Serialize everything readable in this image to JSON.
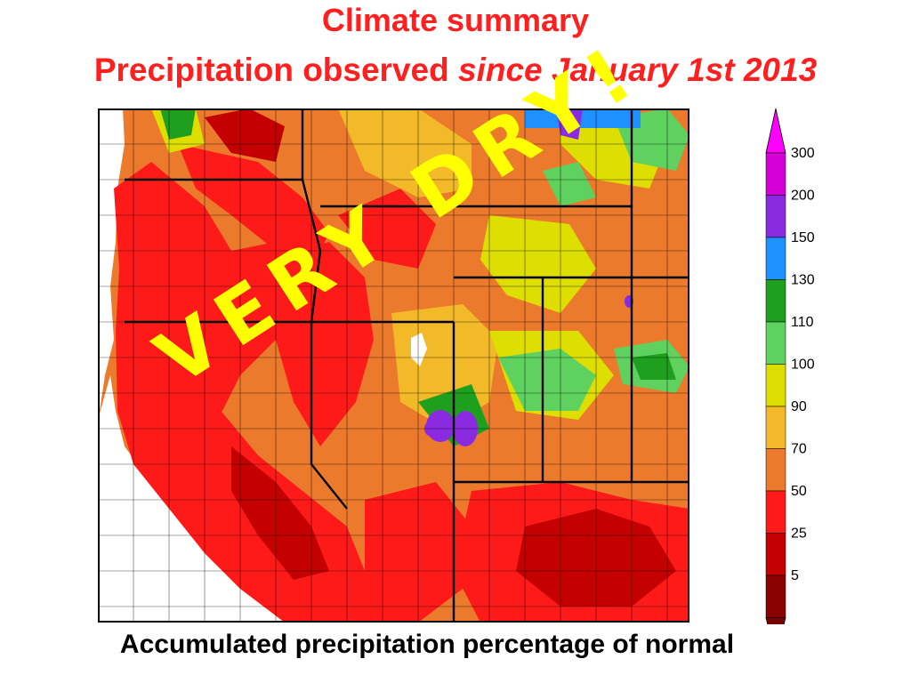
{
  "slide": {
    "title": "Climate summary",
    "subtitle_main": "Precipitation observed ",
    "subtitle_italic": "since January 1st 2013",
    "caption": "Accumulated precipitation percentage of normal",
    "overlay_text": "VERY DRY!"
  },
  "legend": {
    "title": "",
    "bins": [
      {
        "label": "300",
        "color": "#d600d6"
      },
      {
        "label": "200",
        "color": "#8a2be2"
      },
      {
        "label": "150",
        "color": "#1e90ff"
      },
      {
        "label": "130",
        "color": "#1ea01e"
      },
      {
        "label": "110",
        "color": "#5fd15f"
      },
      {
        "label": "100",
        "color": "#dede00"
      },
      {
        "label": "90",
        "color": "#f2b928"
      },
      {
        "label": "70",
        "color": "#ec7a2c"
      },
      {
        "label": "50",
        "color": "#ff1a1a"
      },
      {
        "label": "25",
        "color": "#c40000"
      },
      {
        "label": "5",
        "color": "#8b0000"
      }
    ],
    "top_arrow_color": "#ff00ff",
    "bottom_arrow_color": "#7a0000"
  },
  "map": {
    "region": "Western United States",
    "base_color": "#ec7a2c",
    "colors": {
      "dry": "#ff1a1a",
      "very_dry": "#c40000",
      "orange": "#ec7a2c",
      "light_orange": "#f2b928",
      "yellow": "#dede00",
      "light_green": "#5fd15f",
      "green": "#1ea01e",
      "blue": "#1e90ff",
      "purple": "#8a2be2",
      "water": "#ffffff",
      "border": "#000000"
    }
  }
}
